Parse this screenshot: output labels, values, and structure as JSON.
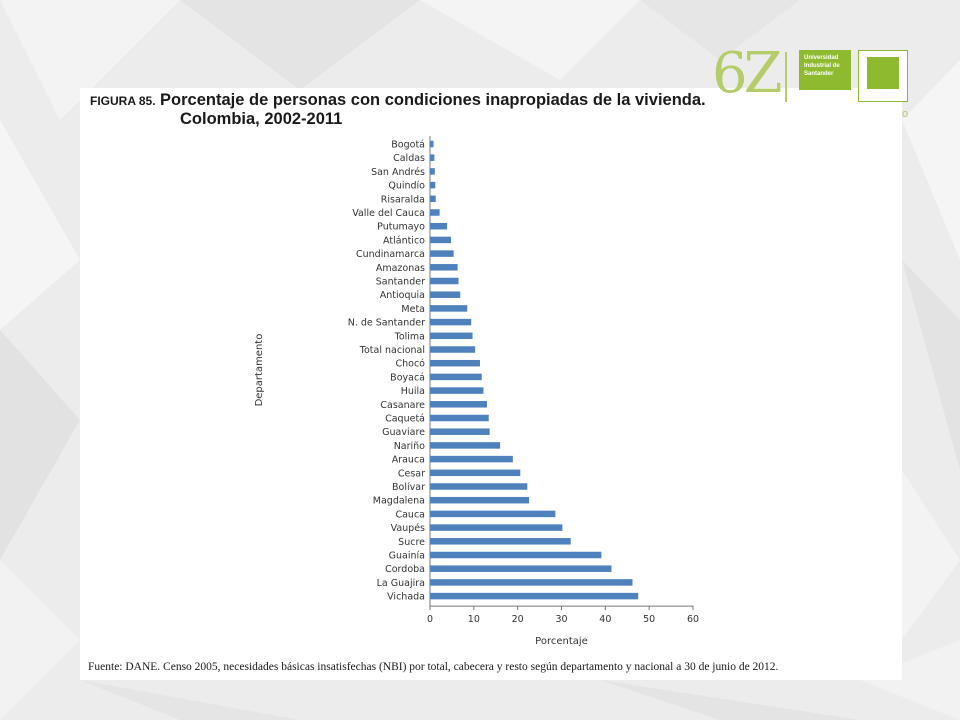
{
  "header": {
    "logo_number": "6Z",
    "university_line1": "Universidad",
    "university_line2": "Industrial de",
    "university_line3": "Santander",
    "corner_text": "o"
  },
  "figure": {
    "label": "FIGURA 85.",
    "title_line1": "Porcentaje de personas con condiciones inapropiadas de la vivienda.",
    "title_line2": "Colombia, 2002-2011",
    "source": "Fuente: DANE. Censo 2005, necesidades básicas insatisfechas (NBI) por total, cabecera y resto según departamento y nacional a 30 de junio de 2012."
  },
  "chart_data": {
    "type": "bar",
    "orientation": "horizontal",
    "ylabel": "Departamento",
    "xlabel": "Porcentaje",
    "xlim": [
      0,
      60
    ],
    "xticks": [
      "0",
      "10",
      "20",
      "30",
      "40",
      "50",
      "60"
    ],
    "bar_color": "#4f81bd",
    "grid": false,
    "categories": [
      "Bogotá",
      "Caldas",
      "San Andrés",
      "Quindío",
      "Risaralda",
      "Valle del Cauca",
      "Putumayo",
      "Atlántico",
      "Cundinamarca",
      "Amazonas",
      "Santander",
      "Antioquia",
      "Meta",
      "N. de Santander",
      "Tolima",
      "Total nacional",
      "Chocó",
      "Boyacá",
      "Huila",
      "Casanare",
      "Caquetá",
      "Guaviare",
      "Nariño",
      "Arauca",
      "Cesar",
      "Bolívar",
      "Magdalena",
      "Cauca",
      "Vaupés",
      "Sucre",
      "Guainía",
      "Cordoba",
      "La Guajira",
      "Vichada"
    ],
    "values": [
      0.8,
      1.0,
      1.1,
      1.2,
      1.3,
      2.2,
      3.9,
      4.8,
      5.4,
      6.3,
      6.5,
      6.9,
      8.5,
      9.4,
      9.7,
      10.3,
      11.4,
      11.8,
      12.2,
      13.0,
      13.4,
      13.6,
      16.0,
      18.9,
      20.6,
      22.2,
      22.6,
      28.6,
      30.2,
      32.1,
      39.1,
      41.4,
      46.2,
      47.5
    ]
  }
}
